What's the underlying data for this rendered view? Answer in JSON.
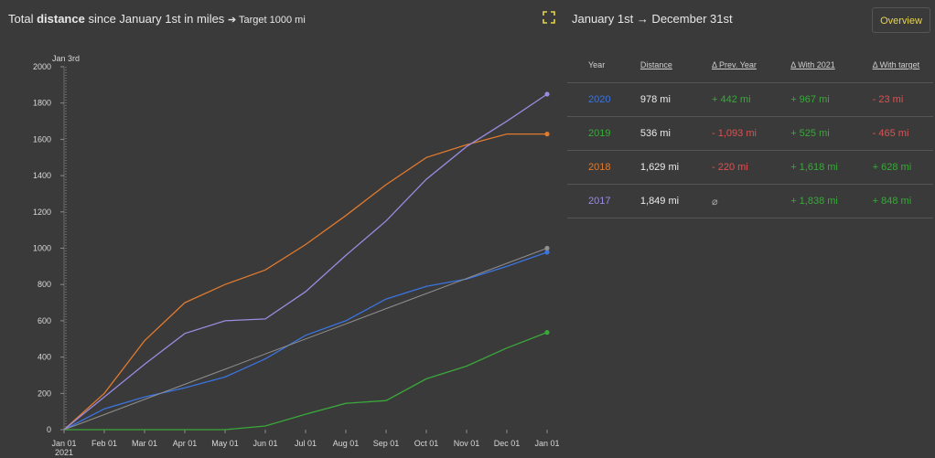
{
  "header": {
    "title_prefix": "Total",
    "title_bold": "distance",
    "title_suffix": "since January 1st in miles",
    "target_text": "➔ Target 1000 mi"
  },
  "table_header": {
    "range_title": "January 1st → December 31st",
    "overview_label": "Overview",
    "columns": [
      "Year",
      "Distance",
      "Δ Prev. Year",
      "Δ With 2021",
      "Δ With target"
    ]
  },
  "rows": [
    {
      "year": "2020",
      "color": "#3b74e0",
      "distance": "978 mi",
      "prev": "+ 442 mi",
      "with2021": "+ 967 mi",
      "target": "- 23 mi"
    },
    {
      "year": "2019",
      "color": "#3aa83a",
      "distance": "536 mi",
      "prev": "- 1,093 mi",
      "with2021": "+ 525 mi",
      "target": "- 465 mi"
    },
    {
      "year": "2018",
      "color": "#e07a2e",
      "distance": "1,629 mi",
      "prev": "- 220 mi",
      "with2021": "+ 1,618 mi",
      "target": "+ 628 mi"
    },
    {
      "year": "2017",
      "color": "#9a8ce0",
      "distance": "1,849 mi",
      "prev": "⌀",
      "with2021": "+ 1,838 mi",
      "target": "+ 848 mi"
    }
  ],
  "chart_data": {
    "type": "line",
    "title": "Total distance since January 1st in miles",
    "xlabel": "",
    "ylabel": "",
    "ylim": [
      0,
      2000
    ],
    "yticks": [
      0,
      200,
      400,
      600,
      800,
      1000,
      1200,
      1400,
      1600,
      1800,
      2000
    ],
    "xticks": [
      "Jan 01",
      "Feb 01",
      "Mar 01",
      "Apr 01",
      "May 01",
      "Jun 01",
      "Jul 01",
      "Aug 01",
      "Sep 01",
      "Oct 01",
      "Nov 01",
      "Dec 01",
      "Jan 01"
    ],
    "xtick_sublabel": "2021",
    "marker_label": "Jan 3rd",
    "x_months": [
      0,
      1,
      2,
      3,
      4,
      5,
      6,
      7,
      8,
      9,
      10,
      11,
      12
    ],
    "series": [
      {
        "name": "2020",
        "color": "#3b74e0",
        "values": [
          0,
          115,
          180,
          230,
          290,
          390,
          520,
          600,
          720,
          790,
          830,
          900,
          978
        ]
      },
      {
        "name": "2019",
        "color": "#3aa83a",
        "values": [
          0,
          0,
          0,
          0,
          0,
          20,
          85,
          145,
          160,
          280,
          350,
          450,
          536
        ]
      },
      {
        "name": "2018",
        "color": "#e07a2e",
        "values": [
          0,
          200,
          490,
          700,
          800,
          880,
          1020,
          1180,
          1350,
          1500,
          1570,
          1629,
          1629
        ]
      },
      {
        "name": "2017",
        "color": "#9a8ce0",
        "values": [
          0,
          180,
          360,
          530,
          600,
          610,
          760,
          960,
          1150,
          1380,
          1560,
          1700,
          1849
        ]
      },
      {
        "name": "Target",
        "color": "#8f8f8f",
        "values": [
          0,
          83,
          167,
          250,
          333,
          417,
          500,
          583,
          667,
          750,
          833,
          917,
          1000
        ]
      }
    ]
  }
}
